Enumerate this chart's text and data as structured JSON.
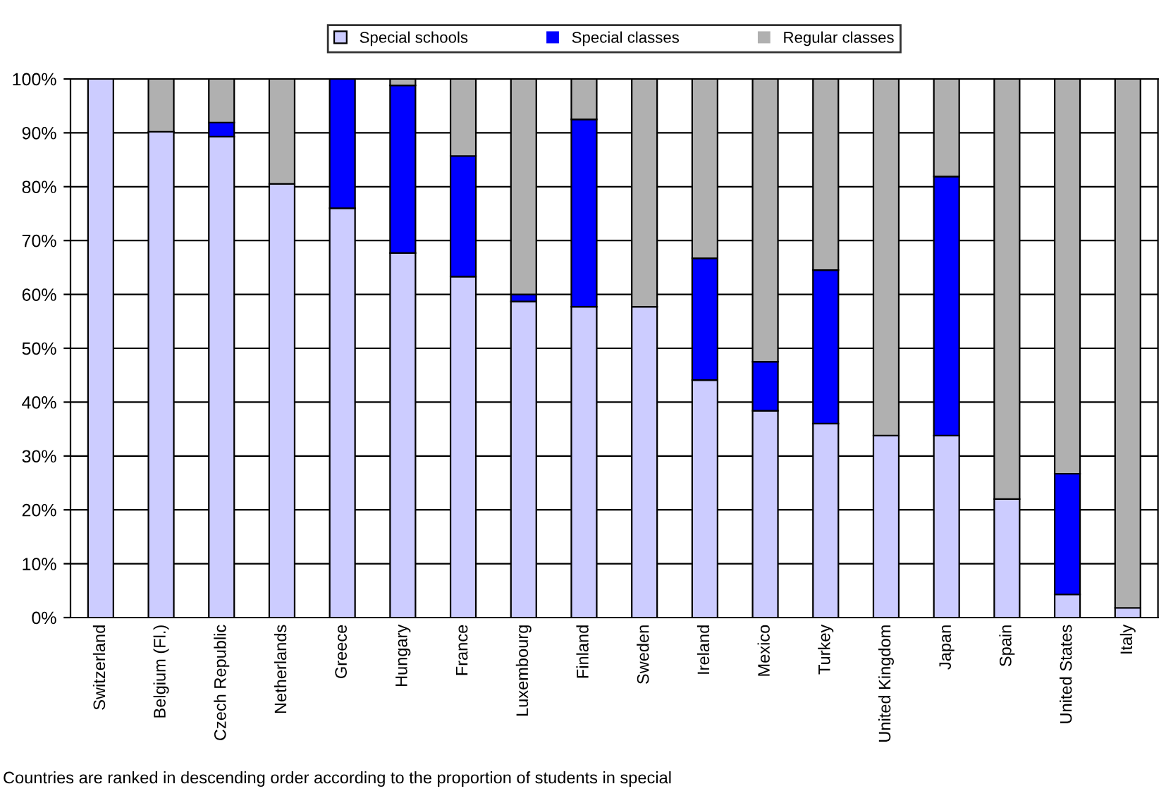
{
  "chart_data": {
    "type": "bar",
    "stacked": true,
    "categories": [
      "Switzerland",
      "Belgium (Fl.)",
      "Czech Republic",
      "Netherlands",
      "Greece",
      "Hungary",
      "France",
      "Luxembourg",
      "Finland",
      "Sweden",
      "Ireland",
      "Mexico",
      "Turkey",
      "United Kingdom",
      "Japan",
      "Spain",
      "United States",
      "Italy"
    ],
    "series": [
      {
        "name": "Special schools",
        "color": "#ccccff",
        "values": [
          100,
          90.2,
          89.3,
          80.5,
          76,
          67.7,
          63.3,
          58.7,
          57.7,
          57.7,
          44.1,
          38.4,
          36.0,
          33.8,
          33.8,
          22.0,
          4.3,
          1.8
        ]
      },
      {
        "name": "Special classes",
        "color": "#0000ff",
        "values": [
          0,
          0,
          2.6,
          0,
          24,
          31.1,
          22.4,
          1.3,
          34.8,
          0,
          22.6,
          9.1,
          28.5,
          0,
          48.1,
          0,
          22.4,
          0
        ]
      },
      {
        "name": "Regular classes",
        "color": "#b0b0b0",
        "values": [
          0,
          9.8,
          8.1,
          19.5,
          0,
          1.2,
          14.3,
          40,
          7.5,
          42.3,
          33.3,
          52.5,
          35.5,
          66.2,
          18.1,
          78,
          73.3,
          98.2
        ]
      }
    ],
    "ylim": [
      0,
      100
    ],
    "yticks": [
      {
        "value": 0,
        "label": "0%"
      },
      {
        "value": 10,
        "label": "10%"
      },
      {
        "value": 20,
        "label": "20%"
      },
      {
        "value": 30,
        "label": "30%"
      },
      {
        "value": 40,
        "label": "40%"
      },
      {
        "value": 50,
        "label": "50%"
      },
      {
        "value": 60,
        "label": "60%"
      },
      {
        "value": 70,
        "label": "70%"
      },
      {
        "value": 80,
        "label": "80%"
      },
      {
        "value": 90,
        "label": "90%"
      },
      {
        "value": 100,
        "label": "100%"
      }
    ],
    "grid": "y",
    "legend": "top",
    "annotations": [
      "Countries are ranked in descending order according to the proportion of students in special"
    ]
  }
}
